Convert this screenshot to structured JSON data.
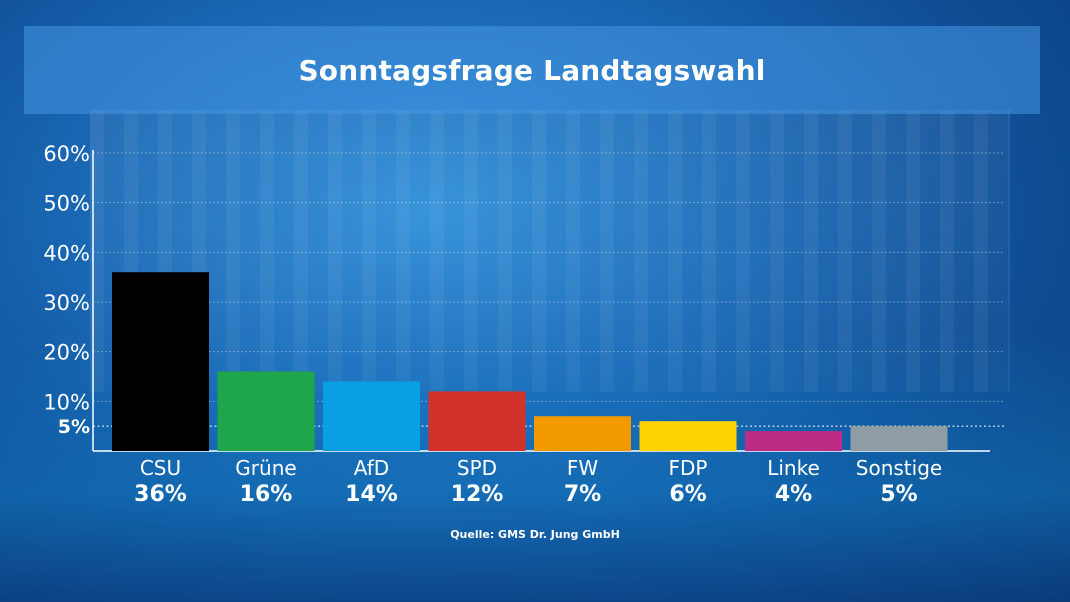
{
  "header": {
    "title": "Sonntagsfrage Landtagswahl"
  },
  "footer": {
    "source": "Quelle: GMS Dr. Jung GmbH"
  },
  "chart_data": {
    "type": "bar",
    "title": "Sonntagsfrage Landtagswahl",
    "xlabel": "",
    "ylabel": "",
    "ylim": [
      0,
      60
    ],
    "yticks": [
      10,
      20,
      30,
      40,
      50,
      60
    ],
    "ytick_labels": [
      "10%",
      "20%",
      "30%",
      "40%",
      "50%",
      "60%"
    ],
    "threshold": {
      "value": 5,
      "label": "5%"
    },
    "grid": true,
    "categories": [
      "CSU",
      "Grüne",
      "AfD",
      "SPD",
      "FW",
      "FDP",
      "Linke",
      "Sonstige"
    ],
    "values": [
      36,
      16,
      14,
      12,
      7,
      6,
      4,
      5
    ],
    "value_labels": [
      "36%",
      "16%",
      "14%",
      "12%",
      "7%",
      "6%",
      "4%",
      "5%"
    ],
    "colors": [
      "#000000",
      "#1fa64b",
      "#0a9ee2",
      "#d2322a",
      "#f39a00",
      "#fdd400",
      "#be2b86",
      "#8f9ca3"
    ]
  }
}
